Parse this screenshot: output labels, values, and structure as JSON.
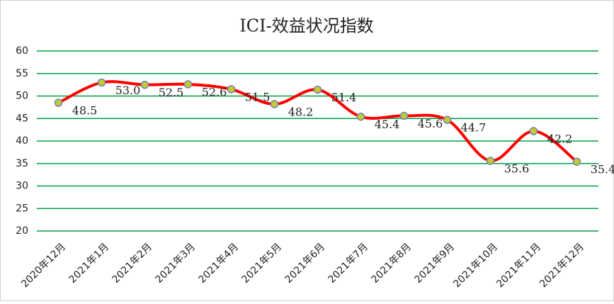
{
  "chart_data": {
    "type": "line",
    "title": "ICI-效益状况指数",
    "categories": [
      "2020年12月",
      "2021年1月",
      "2021年2月",
      "2021年3月",
      "2021年4月",
      "2021年5月",
      "2021年6月",
      "2021年7月",
      "2021年8月",
      "2021年9月",
      "2021年10月",
      "2021年11月",
      "2021年12月"
    ],
    "values": [
      48.5,
      53.0,
      52.5,
      52.6,
      51.5,
      48.2,
      51.4,
      45.4,
      45.6,
      44.7,
      35.6,
      42.2,
      35.4
    ],
    "value_labels": [
      "48.5",
      "53.0",
      "52.5",
      "52.6",
      "51.5",
      "48.2",
      "51.4",
      "45.4",
      "45.6",
      "44.7",
      "35.6",
      "42.2",
      "35.4"
    ],
    "color": "#ff0000",
    "marker_color": "#c8c832",
    "ylim": [
      20,
      60
    ],
    "yticks": [
      20,
      25,
      30,
      35,
      40,
      45,
      50,
      55,
      60
    ],
    "grid": true,
    "grid_color": "#00a040"
  }
}
